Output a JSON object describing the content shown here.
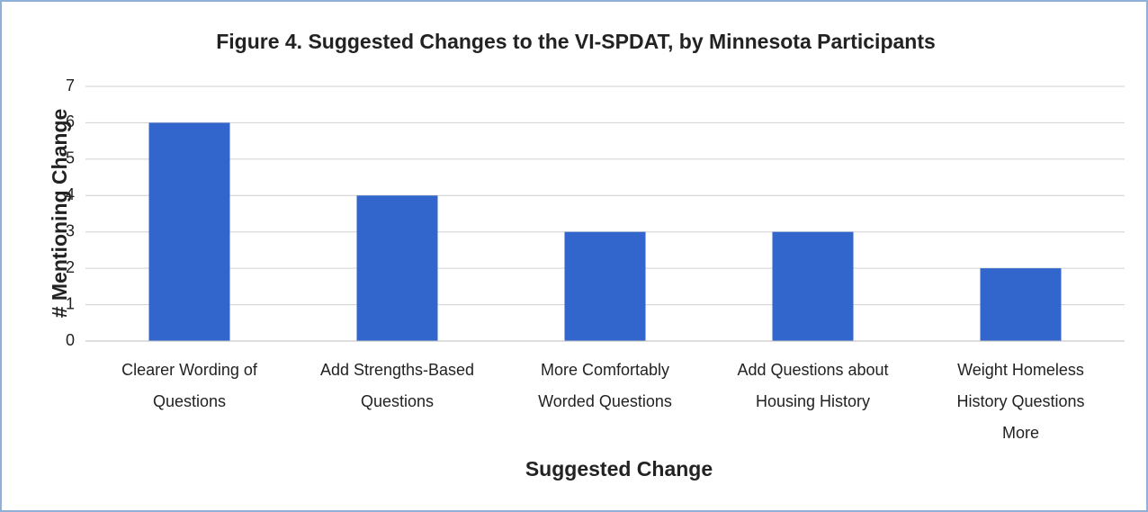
{
  "chart_data": {
    "type": "bar",
    "title": "Figure 4. Suggested Changes to the VI-SPDAT, by Minnesota Participants",
    "x_label": "Suggested Change",
    "y_label": "# Mentioning Change",
    "categories": [
      "Clearer Wording of Questions",
      "Add Strengths-Based Questions",
      "More Comfortably Worded Questions",
      "Add Questions about Housing History",
      "Weight Homeless History Questions More"
    ],
    "values": [
      6,
      4,
      3,
      3,
      2
    ],
    "color": "#3366cc",
    "ylim": [
      0,
      7
    ],
    "yticks": [
      0,
      1,
      2,
      3,
      4,
      5,
      6,
      7
    ],
    "grid": true
  }
}
